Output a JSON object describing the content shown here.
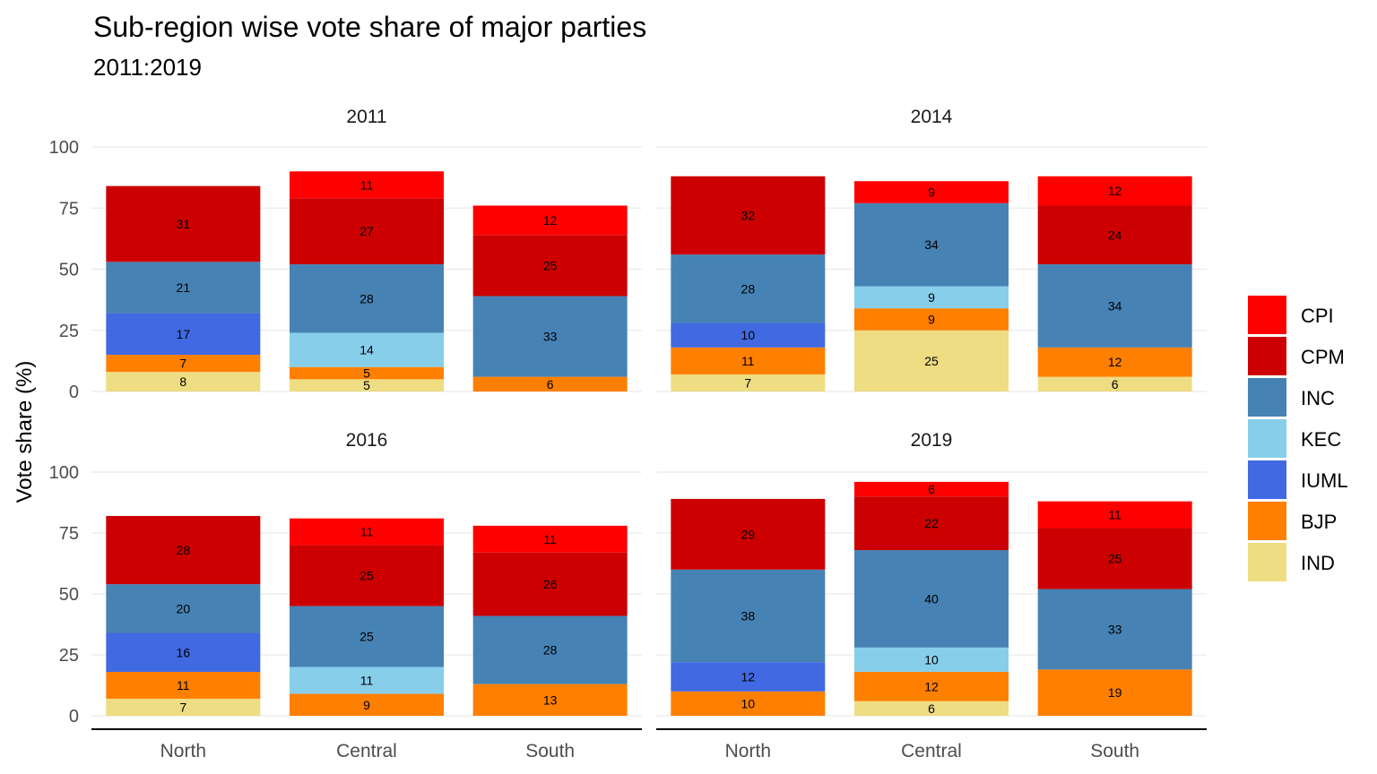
{
  "chart_data": {
    "type": "bar",
    "stacked": true,
    "faceted": true,
    "title": "Sub-region wise vote share of major parties",
    "subtitle": "2011:2019",
    "ylabel": "Vote share (%)",
    "xlabel": "",
    "ylim": [
      0,
      100
    ],
    "yticks": [
      0,
      25,
      50,
      75,
      100
    ],
    "grid": true,
    "legend_position": "right",
    "categories": [
      "North",
      "Central",
      "South"
    ],
    "stack_order_bottom_to_top": [
      "IND",
      "BJP",
      "IUML",
      "KEC",
      "INC",
      "CPM",
      "CPI"
    ],
    "legend": [
      {
        "name": "CPI",
        "color": "#ff0000"
      },
      {
        "name": "CPM",
        "color": "#cc0000"
      },
      {
        "name": "INC",
        "color": "#4682b4"
      },
      {
        "name": "KEC",
        "color": "#87ceeb"
      },
      {
        "name": "IUML",
        "color": "#4169e1"
      },
      {
        "name": "BJP",
        "color": "#ff7f00"
      },
      {
        "name": "IND",
        "color": "#eedd82"
      }
    ],
    "panels": [
      {
        "title": "2011",
        "series": [
          {
            "name": "IND",
            "values": [
              8,
              5,
              null
            ]
          },
          {
            "name": "BJP",
            "values": [
              7,
              5,
              6
            ]
          },
          {
            "name": "IUML",
            "values": [
              17,
              null,
              null
            ]
          },
          {
            "name": "KEC",
            "values": [
              null,
              14,
              null
            ]
          },
          {
            "name": "INC",
            "values": [
              21,
              28,
              33
            ]
          },
          {
            "name": "CPM",
            "values": [
              31,
              27,
              25
            ]
          },
          {
            "name": "CPI",
            "values": [
              null,
              11,
              12
            ]
          }
        ]
      },
      {
        "title": "2014",
        "series": [
          {
            "name": "IND",
            "values": [
              7,
              25,
              6
            ]
          },
          {
            "name": "BJP",
            "values": [
              11,
              9,
              12
            ]
          },
          {
            "name": "IUML",
            "values": [
              10,
              null,
              null
            ]
          },
          {
            "name": "KEC",
            "values": [
              null,
              9,
              null
            ]
          },
          {
            "name": "INC",
            "values": [
              28,
              34,
              34
            ]
          },
          {
            "name": "CPM",
            "values": [
              32,
              null,
              24
            ]
          },
          {
            "name": "CPI",
            "values": [
              null,
              9,
              12
            ]
          }
        ]
      },
      {
        "title": "2016",
        "series": [
          {
            "name": "IND",
            "values": [
              7,
              null,
              null
            ]
          },
          {
            "name": "BJP",
            "values": [
              11,
              9,
              13
            ]
          },
          {
            "name": "IUML",
            "values": [
              16,
              null,
              null
            ]
          },
          {
            "name": "KEC",
            "values": [
              null,
              11,
              null
            ]
          },
          {
            "name": "INC",
            "values": [
              20,
              25,
              28
            ]
          },
          {
            "name": "CPM",
            "values": [
              28,
              25,
              26
            ]
          },
          {
            "name": "CPI",
            "values": [
              null,
              11,
              11
            ]
          }
        ]
      },
      {
        "title": "2019",
        "series": [
          {
            "name": "IND",
            "values": [
              null,
              6,
              null
            ]
          },
          {
            "name": "BJP",
            "values": [
              10,
              12,
              19
            ]
          },
          {
            "name": "IUML",
            "values": [
              12,
              null,
              null
            ]
          },
          {
            "name": "KEC",
            "values": [
              null,
              10,
              null
            ]
          },
          {
            "name": "INC",
            "values": [
              38,
              40,
              33
            ]
          },
          {
            "name": "CPM",
            "values": [
              29,
              22,
              25
            ]
          },
          {
            "name": "CPI",
            "values": [
              null,
              6,
              11
            ]
          }
        ]
      }
    ]
  }
}
